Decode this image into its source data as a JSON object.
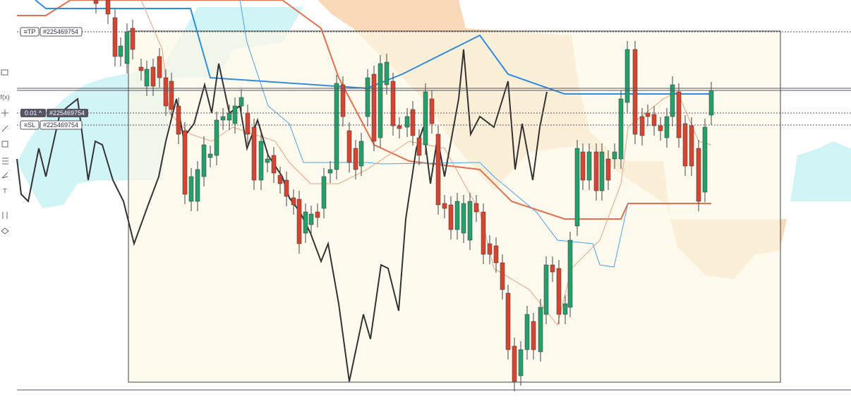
{
  "toolbar": {
    "function_label": "f(x)",
    "text_tool": "T"
  },
  "orders": {
    "take_profit": {
      "tag": "≡TP",
      "id": "#225469754"
    },
    "position": {
      "size": "0.01 ^",
      "id": "#225469754"
    },
    "stop_loss": {
      "tag": "≡SL",
      "id": "#225469754"
    }
  }
}
